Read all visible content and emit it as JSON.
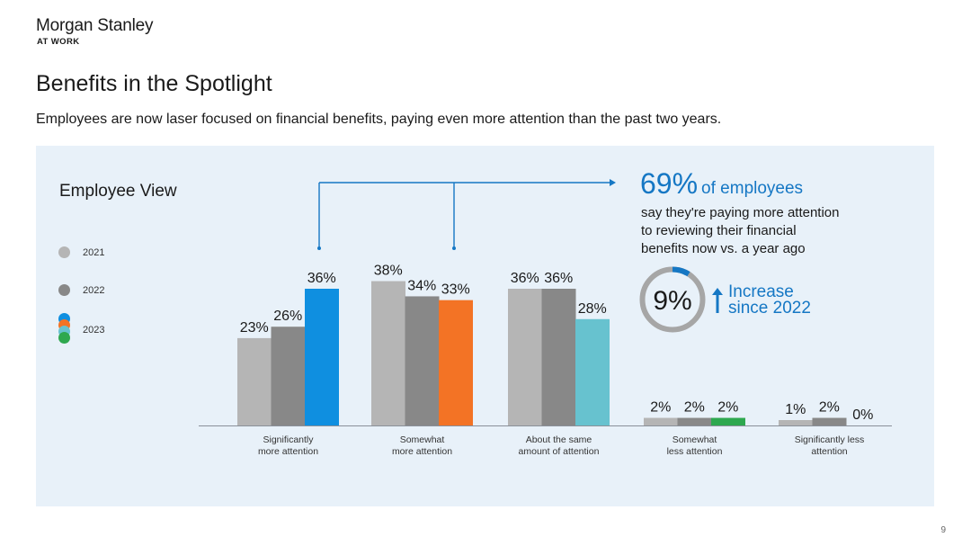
{
  "brand": {
    "name": "Morgan Stanley",
    "sub": "AT WORK"
  },
  "page": {
    "title": "Benefits in the Spotlight",
    "subtitle": "Employees are now laser focused on financial benefits, paying even more attention than the past two years.",
    "number": "9"
  },
  "panel": {
    "title": "Employee View"
  },
  "callout": {
    "big_value": "69%",
    "big_suffix": "of employees",
    "line1": "say they're paying more attention",
    "line2": "to reviewing their financial",
    "line3": "benefits now vs. a year ago",
    "donut_value": "9%",
    "donut_fraction": 0.09,
    "increase_line1": "Increase",
    "increase_line2": "since 2022"
  },
  "colors": {
    "s2021": "#b5b5b5",
    "s2022": "#888888",
    "s2023_blue": "#0f8fe0",
    "s2023_orange": "#f37325",
    "s2023_teal": "#67c2cf",
    "s2023_green": "#2ea84f",
    "accent": "#1577c4"
  },
  "chart_data": {
    "type": "bar",
    "title": "Employee View",
    "categories": [
      [
        "Significantly",
        "more attention"
      ],
      [
        "Somewhat",
        "more attention"
      ],
      [
        "About the same",
        "amount of attention"
      ],
      [
        "Somewhat",
        "less attention"
      ],
      [
        "Significantly less",
        "attention"
      ]
    ],
    "series": [
      {
        "name": "2021",
        "values": [
          23,
          38,
          36,
          2,
          1
        ]
      },
      {
        "name": "2022",
        "values": [
          26,
          34,
          36,
          2,
          2
        ]
      },
      {
        "name": "2023",
        "values": [
          36,
          33,
          28,
          2,
          0
        ],
        "colors": [
          "#0f8fe0",
          "#f37325",
          "#67c2cf",
          "#2ea84f",
          "#2ea84f"
        ]
      }
    ],
    "value_labels": [
      [
        "23%",
        "26%",
        "36%"
      ],
      [
        "38%",
        "34%",
        "33%"
      ],
      [
        "36%",
        "36%",
        "28%"
      ],
      [
        "2%",
        "2%",
        "2%"
      ],
      [
        "1%",
        "2%",
        "0%"
      ]
    ],
    "ylim": [
      0,
      40
    ],
    "grid": false,
    "legend": "left"
  }
}
